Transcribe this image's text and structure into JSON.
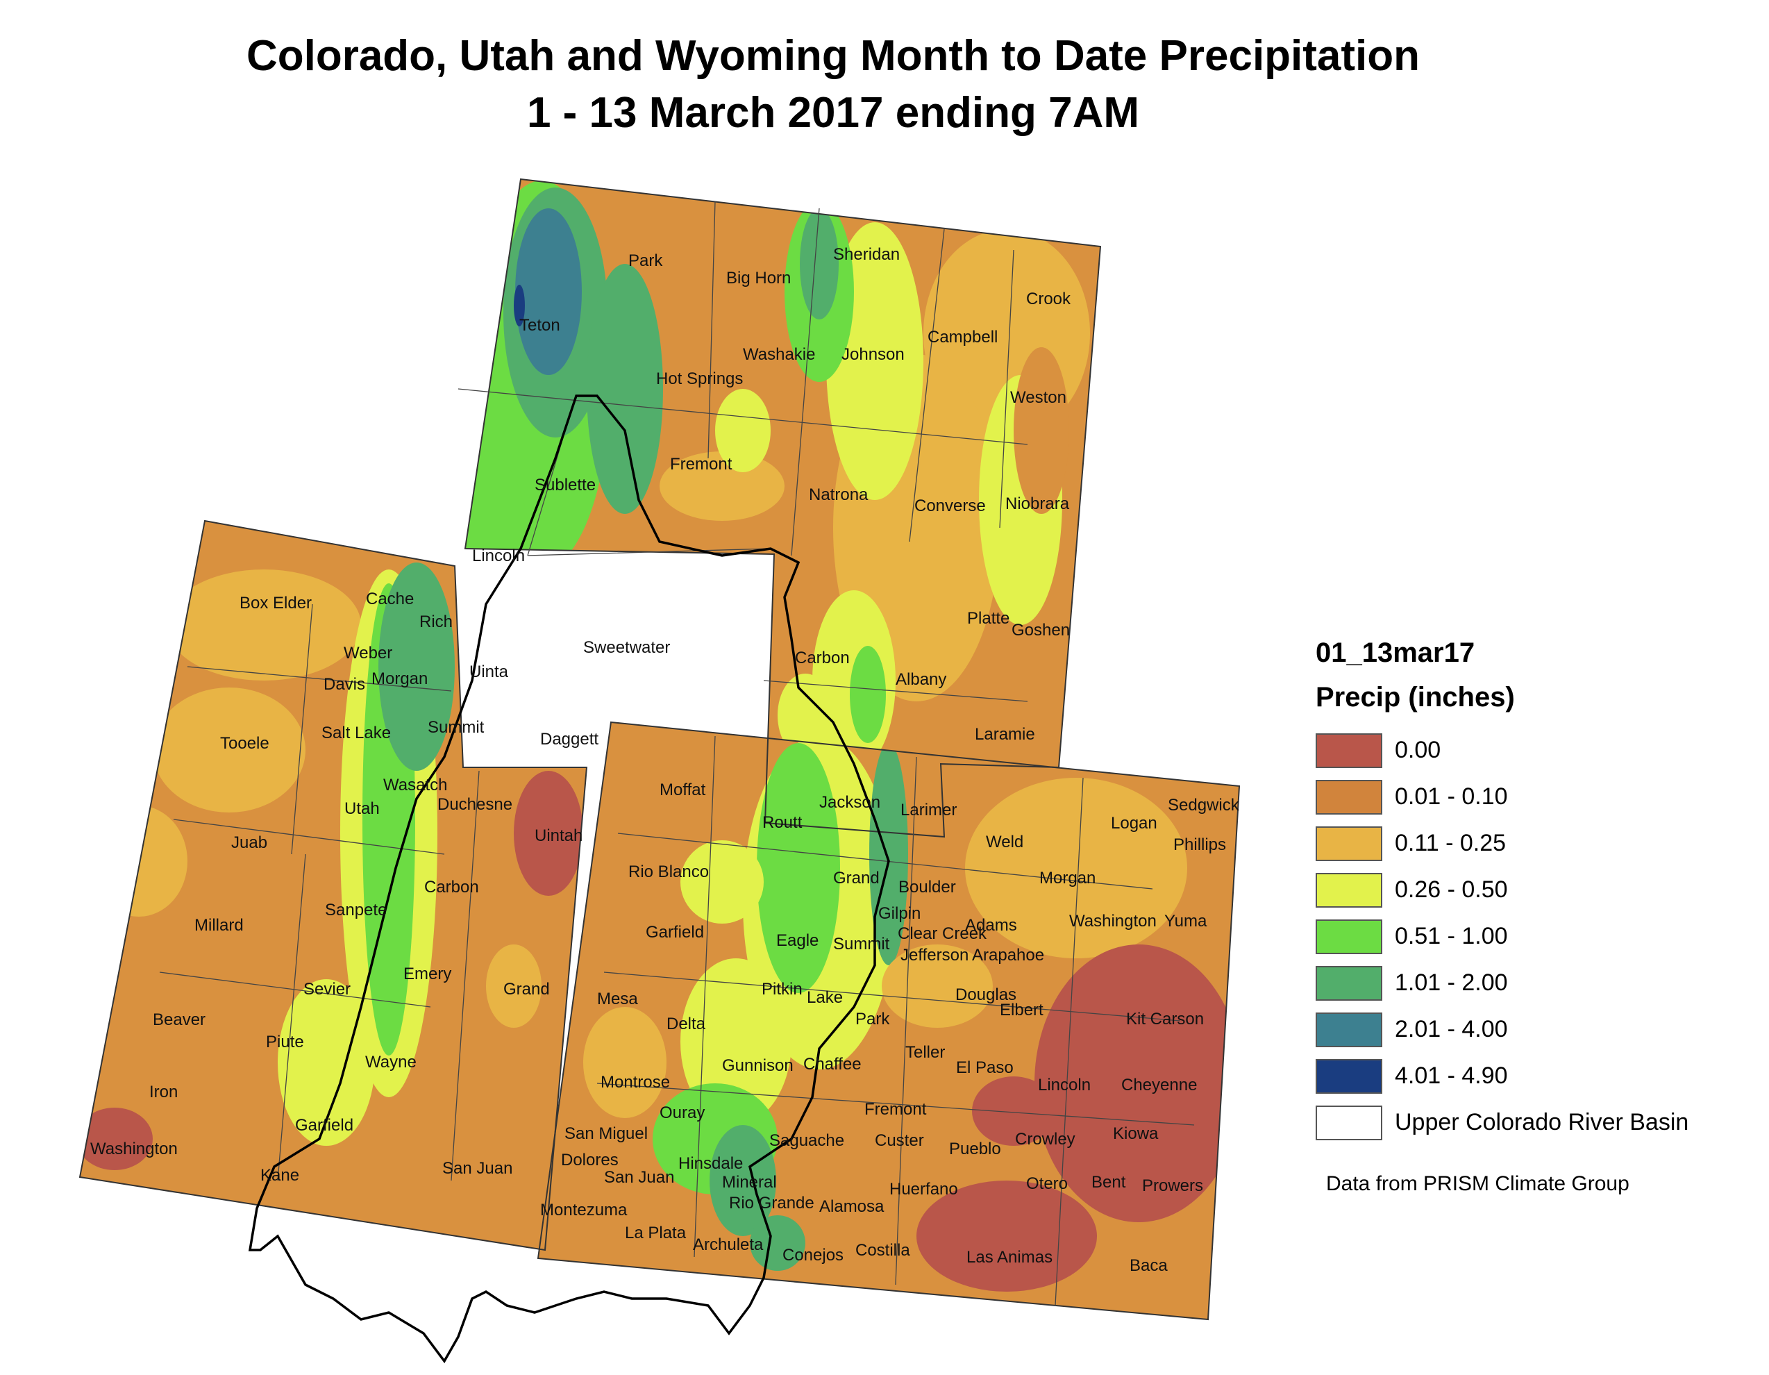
{
  "title": {
    "line1": "Colorado, Utah and Wyoming Month to Date Precipitation",
    "line2": "1 - 13 March 2017 ending 7AM"
  },
  "legend": {
    "layer": "01_13mar17",
    "heading": "Precip (inches)",
    "items": [
      {
        "label": "0.00",
        "color": "#b9564a"
      },
      {
        "label": "0.01 - 0.10",
        "color": "#d1843c"
      },
      {
        "label": "0.11 - 0.25",
        "color": "#e8b445"
      },
      {
        "label": "0.26 - 0.50",
        "color": "#e2f24c"
      },
      {
        "label": "0.51 - 1.00",
        "color": "#6cdc43"
      },
      {
        "label": "1.01 - 2.00",
        "color": "#52ae6b"
      },
      {
        "label": "2.01 - 4.00",
        "color": "#3d8090"
      },
      {
        "label": "4.01 - 4.90",
        "color": "#1a3d80"
      },
      {
        "label": "Upper Colorado River Basin",
        "color": "#ffffff"
      }
    ]
  },
  "credit": "Data from PRISM Climate Group",
  "counties": [
    "Park",
    "Big Horn",
    "Sheridan",
    "Crook",
    "Teton",
    "Campbell",
    "Washakie",
    "Johnson",
    "Hot Springs",
    "Weston",
    "Fremont",
    "Natrona",
    "Converse",
    "Niobrara",
    "Sublette",
    "Lincoln",
    "Box Elder",
    "Cache",
    "Rich",
    "Sweetwater",
    "Platte",
    "Goshen",
    "Weber",
    "Carbon",
    "Uinta",
    "Davis",
    "Morgan",
    "Albany",
    "Tooele",
    "Salt Lake",
    "Summit",
    "Daggett",
    "Laramie",
    "Wasatch",
    "Moffat",
    "Duchesne",
    "Jackson",
    "Sedgwick",
    "Logan",
    "Utah",
    "Uintah",
    "Routt",
    "Larimer",
    "Phillips",
    "Juab",
    "Weld",
    "Rio Blanco",
    "Grand",
    "Morgan",
    "Carbon",
    "Boulder",
    "Gilpin",
    "Sanpete",
    "Adams",
    "Washington",
    "Yuma",
    "Millard",
    "Garfield",
    "Clear Creek",
    "Jefferson",
    "Arapahoe",
    "Eagle",
    "Summit",
    "Emery",
    "Sevier",
    "Grand",
    "Mesa",
    "Pitkin",
    "Douglas",
    "Lake",
    "Elbert",
    "Beaver",
    "Delta",
    "Park",
    "Kit Carson",
    "Piute",
    "Teller",
    "Wayne",
    "Gunnison",
    "Chaffee",
    "El Paso",
    "Montrose",
    "Lincoln",
    "Cheyenne",
    "Iron",
    "Fremont",
    "Garfield",
    "Ouray",
    "Crowley",
    "Kiowa",
    "San Miguel",
    "Saguache",
    "Custer",
    "Pueblo",
    "Washington",
    "Hinsdale",
    "Dolores",
    "Kane",
    "San Juan",
    "San Juan",
    "Mineral",
    "Otero",
    "Bent",
    "Prowers",
    "Huerfano",
    "Rio Grande",
    "Alamosa",
    "Montezuma",
    "La Plata",
    "Archuleta",
    "Conejos",
    "Costilla",
    "Las Animas",
    "Baca"
  ]
}
